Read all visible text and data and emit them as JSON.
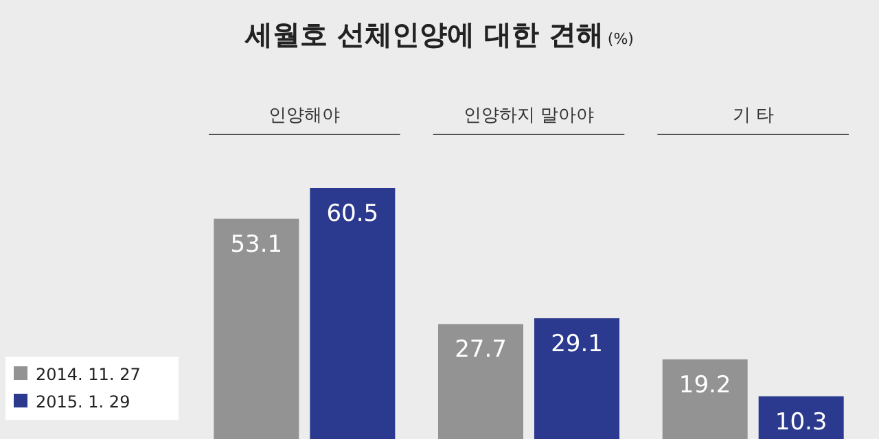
{
  "chart_data": {
    "type": "bar",
    "title": "세월호 선체인양에 대한 견해",
    "ylabel": "(%)",
    "categories": [
      "인양해야",
      "인양하지 말아야",
      "기 타"
    ],
    "series": [
      {
        "name": "2014. 11. 27",
        "color": "#939393",
        "values": [
          53.1,
          27.7,
          19.2
        ]
      },
      {
        "name": "2015. 1. 29",
        "color": "#2b3a8f",
        "values": [
          60.5,
          29.1,
          10.3
        ]
      }
    ],
    "data_labels": true,
    "legend": "bottom left"
  }
}
